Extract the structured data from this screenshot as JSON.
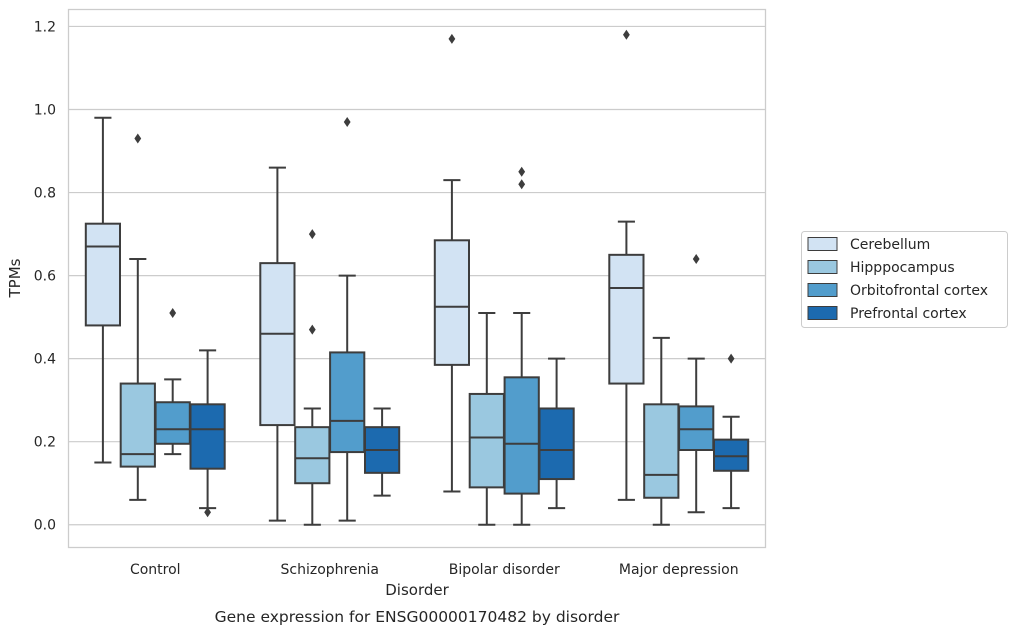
{
  "chart_data": {
    "type": "boxplot",
    "caption": "Gene expression for ENSG00000170482 by disorder",
    "xlabel": "Disorder",
    "ylabel": "TPMs",
    "ylim": [
      -0.056,
      1.242
    ],
    "yticks": [
      0.0,
      0.2,
      0.4,
      0.6,
      0.8,
      1.0,
      1.2
    ],
    "ytick_labels": [
      "0.0",
      "0.2",
      "0.4",
      "0.6",
      "0.8",
      "1.0",
      "1.2"
    ],
    "grid": "horizontal",
    "legend_position": "right",
    "categories": [
      "Control",
      "Schizophrenia",
      "Bipolar disorder",
      "Major depression"
    ],
    "series": [
      {
        "name": "Cerebellum",
        "color": "#d2e3f3",
        "boxes": [
          {
            "whisker_low": 0.15,
            "q1": 0.48,
            "median": 0.67,
            "q3": 0.725,
            "whisker_high": 0.98,
            "outliers": []
          },
          {
            "whisker_low": 0.01,
            "q1": 0.24,
            "median": 0.46,
            "q3": 0.63,
            "whisker_high": 0.86,
            "outliers": []
          },
          {
            "whisker_low": 0.08,
            "q1": 0.385,
            "median": 0.525,
            "q3": 0.685,
            "whisker_high": 0.83,
            "outliers": [
              1.17
            ]
          },
          {
            "whisker_low": 0.06,
            "q1": 0.34,
            "median": 0.57,
            "q3": 0.65,
            "whisker_high": 0.73,
            "outliers": [
              1.18
            ]
          }
        ]
      },
      {
        "name": "Hipppocampus",
        "color": "#9ac8e0",
        "boxes": [
          {
            "whisker_low": 0.06,
            "q1": 0.14,
            "median": 0.17,
            "q3": 0.34,
            "whisker_high": 0.64,
            "outliers": [
              0.93
            ]
          },
          {
            "whisker_low": 0.0,
            "q1": 0.1,
            "median": 0.16,
            "q3": 0.235,
            "whisker_high": 0.28,
            "outliers": [
              0.7,
              0.47
            ]
          },
          {
            "whisker_low": 0.0,
            "q1": 0.09,
            "median": 0.21,
            "q3": 0.315,
            "whisker_high": 0.51,
            "outliers": []
          },
          {
            "whisker_low": 0.0,
            "q1": 0.065,
            "median": 0.12,
            "q3": 0.29,
            "whisker_high": 0.45,
            "outliers": []
          }
        ]
      },
      {
        "name": "Orbitofrontal cortex",
        "color": "#529dcc",
        "boxes": [
          {
            "whisker_low": 0.17,
            "q1": 0.195,
            "median": 0.23,
            "q3": 0.295,
            "whisker_high": 0.35,
            "outliers": [
              0.51
            ]
          },
          {
            "whisker_low": 0.01,
            "q1": 0.175,
            "median": 0.25,
            "q3": 0.415,
            "whisker_high": 0.6,
            "outliers": [
              0.97
            ]
          },
          {
            "whisker_low": 0.0,
            "q1": 0.075,
            "median": 0.195,
            "q3": 0.355,
            "whisker_high": 0.51,
            "outliers": [
              0.85,
              0.82
            ]
          },
          {
            "whisker_low": 0.03,
            "q1": 0.18,
            "median": 0.23,
            "q3": 0.285,
            "whisker_high": 0.4,
            "outliers": [
              0.64
            ]
          }
        ]
      },
      {
        "name": "Prefrontal cortex",
        "color": "#1c6aaf",
        "boxes": [
          {
            "whisker_low": 0.04,
            "q1": 0.135,
            "median": 0.23,
            "q3": 0.29,
            "whisker_high": 0.42,
            "outliers": [
              0.03
            ]
          },
          {
            "whisker_low": 0.07,
            "q1": 0.125,
            "median": 0.18,
            "q3": 0.235,
            "whisker_high": 0.28,
            "outliers": []
          },
          {
            "whisker_low": 0.04,
            "q1": 0.11,
            "median": 0.18,
            "q3": 0.28,
            "whisker_high": 0.4,
            "outliers": []
          },
          {
            "whisker_low": 0.04,
            "q1": 0.13,
            "median": 0.165,
            "q3": 0.205,
            "whisker_high": 0.26,
            "outliers": [
              0.4
            ]
          }
        ]
      }
    ]
  }
}
